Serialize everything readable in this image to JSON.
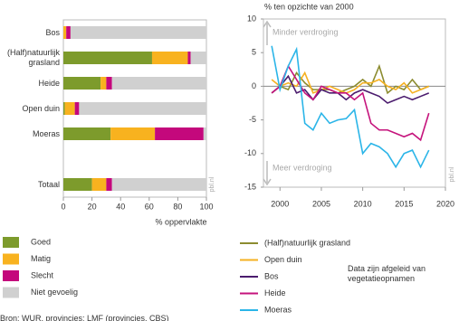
{
  "chart_data": [
    {
      "type": "stacked-barh",
      "xlabel": "% oppervlakte",
      "categories": [
        "Bos",
        "(Half)natuurlijk grasland",
        "Heide",
        "Open duin",
        "Moeras",
        null,
        "Totaal"
      ],
      "series": [
        {
          "name": "Goed",
          "color": "#7d9b2c",
          "values": [
            0,
            62,
            26,
            1,
            33,
            null,
            20
          ]
        },
        {
          "name": "Matig",
          "color": "#f8b21f",
          "values": [
            2,
            25,
            4,
            7,
            31,
            null,
            10
          ]
        },
        {
          "name": "Slecht",
          "color": "#c4087c",
          "values": [
            3,
            2,
            4,
            3,
            34,
            null,
            4
          ]
        },
        {
          "name": "Niet gevoelig",
          "color": "#d0d0d0",
          "values": [
            95,
            11,
            66,
            89,
            2,
            null,
            66
          ]
        }
      ],
      "xlim": [
        0,
        100
      ],
      "xticks": [
        0,
        20,
        40,
        60,
        80,
        100
      ],
      "watermark": "pbl.nl"
    },
    {
      "type": "line",
      "ylabel": "% ten opzichte van 2000",
      "annotations": [
        "Minder verdroging",
        "Meer verdroging"
      ],
      "x": [
        1999,
        2000,
        2001,
        2002,
        2003,
        2004,
        2005,
        2006,
        2007,
        2008,
        2009,
        2010,
        2011,
        2012,
        2013,
        2014,
        2015,
        2016,
        2017,
        2018
      ],
      "series": [
        {
          "name": "(Half)natuurlijk grasland",
          "color": "#8c8c30",
          "values": [
            -1,
            0,
            -0.5,
            2,
            0.5,
            -0.5,
            -0.5,
            -0.5,
            -1,
            -0.5,
            0,
            1,
            0,
            3,
            -1,
            0,
            -0.5,
            1,
            -0.5,
            0
          ]
        },
        {
          "name": "Open duin",
          "color": "#f5b122",
          "values": [
            1,
            0,
            0.5,
            0,
            2,
            -1,
            -0.5,
            0,
            -0.5,
            -1,
            -0.5,
            0.5,
            0.5,
            1,
            0,
            -0.5,
            0.5,
            -1,
            -0.5,
            0
          ]
        },
        {
          "name": "Bos",
          "color": "#4b1c6e",
          "values": [
            -1,
            0,
            1.5,
            -1,
            -0.5,
            -2,
            -0.5,
            -1,
            -1,
            -2,
            -1,
            -0.5,
            -1,
            -1.5,
            -2.5,
            -2,
            -1.5,
            -2,
            -1.5,
            -1
          ]
        },
        {
          "name": "Heide",
          "color": "#c5137c",
          "values": [
            -1,
            0,
            3,
            1,
            -1,
            -2,
            0,
            -0.5,
            -1,
            -1,
            -2,
            -1,
            -5.5,
            -6.5,
            -6.5,
            -7,
            -7.5,
            -7,
            -8,
            -4
          ]
        },
        {
          "name": "Moeras",
          "color": "#2bb5e8",
          "values": [
            6,
            -0.5,
            3,
            5.5,
            -5.5,
            -6.5,
            -4,
            -5.5,
            -5,
            -4.8,
            -3.5,
            -10,
            -8.5,
            -9,
            -10,
            -12,
            -10,
            -9.5,
            -12,
            -9.5
          ]
        }
      ],
      "xlim": [
        1998,
        2020
      ],
      "xticks": [
        2000,
        2005,
        2010,
        2015,
        2020
      ],
      "ylim": [
        -15,
        10
      ],
      "yticks": [
        -15,
        -10,
        -5,
        0,
        5,
        10
      ],
      "watermark": "pbl.nl"
    }
  ],
  "note": "Data zijn afgeleid van vegetatieopnamen",
  "source": "Bron: WUR, provincies; LMF (provincies, CBS)"
}
